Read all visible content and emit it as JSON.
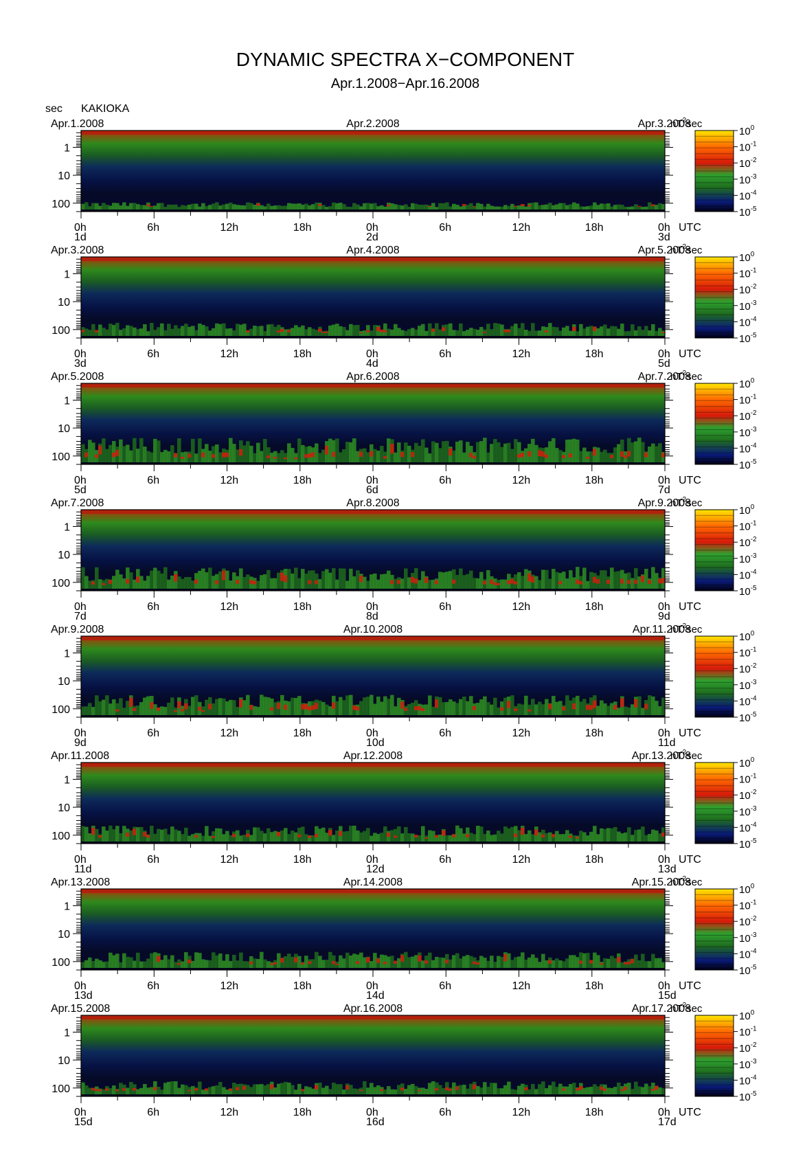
{
  "title": "DYNAMIC SPECTRA X−COMPONENT",
  "subtitle": "Apr.1.2008−Apr.16.2008",
  "y_unit_label": "sec",
  "station": "KAKIOKA",
  "colorbar_unit": {
    "base": "nT",
    "sup": "2",
    "tail": "sec"
  },
  "colorbar_ticks": [
    {
      "base": "10",
      "exp": "0"
    },
    {
      "base": "10",
      "exp": "-1"
    },
    {
      "base": "10",
      "exp": "-2"
    },
    {
      "base": "10",
      "exp": "-3"
    },
    {
      "base": "10",
      "exp": "-4"
    },
    {
      "base": "10",
      "exp": "-5"
    }
  ],
  "x_tick_labels": [
    "0h",
    "6h",
    "12h",
    "18h",
    "0h",
    "6h",
    "12h",
    "18h",
    "0h"
  ],
  "utc_label": "UTC",
  "y_tick_labels": [
    "1",
    "10",
    "100"
  ],
  "chart_data": {
    "type": "heatmap",
    "title": "DYNAMIC SPECTRA X−COMPONENT",
    "subtitle": "Apr.1.2008−Apr.16.2008",
    "ylabel": "sec",
    "yscale": "log",
    "ylim": [
      200,
      0.25
    ],
    "y_ticks": [
      1,
      10,
      100
    ],
    "xlim_hours": [
      0,
      48
    ],
    "x_ticks_hours": [
      0,
      6,
      12,
      18,
      24,
      30,
      36,
      42,
      48
    ],
    "colorbar": {
      "label": "nT²sec",
      "scale": "log",
      "range": [
        1e-05,
        1
      ],
      "colors": [
        "#000010",
        "#0a1a78",
        "#1f6e1f",
        "#2ea02e",
        "#d71a0a",
        "#ff6a00",
        "#ffe600"
      ]
    },
    "panels": [
      {
        "start": "Apr.1.2008",
        "mid": "Apr.2.2008",
        "end": "Apr.3.2008",
        "days": [
          "1d",
          "2d",
          "3d"
        ],
        "activity": 0.25
      },
      {
        "start": "Apr.3.2008",
        "mid": "Apr.4.2008",
        "end": "Apr.5.2008",
        "days": [
          "3d",
          "4d",
          "5d"
        ],
        "activity": 0.45
      },
      {
        "start": "Apr.5.2008",
        "mid": "Apr.6.2008",
        "end": "Apr.7.2008",
        "days": [
          "5d",
          "6d",
          "7d"
        ],
        "activity": 0.85
      },
      {
        "start": "Apr.7.2008",
        "mid": "Apr.8.2008",
        "end": "Apr.9.2008",
        "days": [
          "7d",
          "8d",
          "9d"
        ],
        "activity": 0.75
      },
      {
        "start": "Apr.9.2008",
        "mid": "Apr.10.2008",
        "end": "Apr.11.2008",
        "days": [
          "9d",
          "10d",
          "11d"
        ],
        "activity": 0.7
      },
      {
        "start": "Apr.11.2008",
        "mid": "Apr.12.2008",
        "end": "Apr.13.2008",
        "days": [
          "11d",
          "12d",
          "13d"
        ],
        "activity": 0.55
      },
      {
        "start": "Apr.13.2008",
        "mid": "Apr.14.2008",
        "end": "Apr.15.2008",
        "days": [
          "13d",
          "14d",
          "15d"
        ],
        "activity": 0.55
      },
      {
        "start": "Apr.15.2008",
        "mid": "Apr.16.2008",
        "end": "Apr.17.2008",
        "days": [
          "15d",
          "16d",
          "17d"
        ],
        "activity": 0.45
      }
    ]
  }
}
